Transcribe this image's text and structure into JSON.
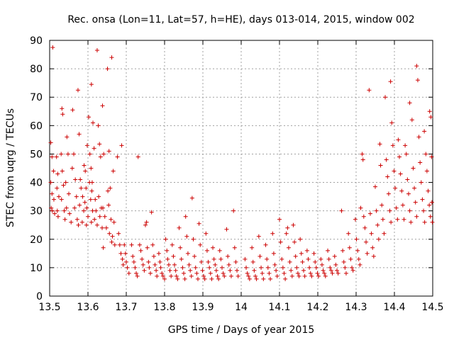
{
  "chart_data": {
    "type": "scatter",
    "title": "Rec. onsa (Lon=11, Lat=57, h=HE), days 013-014, 2015, window 002",
    "xlabel": "GPS time / Days of year 2015",
    "ylabel": "STEC from uqrg / TECUs",
    "xlim": [
      13.5,
      14.5
    ],
    "ylim": [
      0,
      90
    ],
    "xticks": [
      "13.5",
      "13.6",
      "13.7",
      "13.8",
      "13.9",
      "14",
      "14.1",
      "14.2",
      "14.3",
      "14.4",
      "14.5"
    ],
    "yticks": [
      "0",
      "10",
      "20",
      "30",
      "40",
      "50",
      "60",
      "70",
      "80",
      "90"
    ],
    "grid": true,
    "marker": "plus",
    "color": "#cc0000",
    "points": [
      [
        13.508,
        87.5
      ],
      [
        13.503,
        54
      ],
      [
        13.506,
        49
      ],
      [
        13.51,
        44
      ],
      [
        13.503,
        40
      ],
      [
        13.506,
        36
      ],
      [
        13.511,
        34
      ],
      [
        13.504,
        31
      ],
      [
        13.507,
        30
      ],
      [
        13.513,
        29
      ],
      [
        13.518,
        49
      ],
      [
        13.521,
        43
      ],
      [
        13.519,
        38
      ],
      [
        13.524,
        35
      ],
      [
        13.52,
        30
      ],
      [
        13.522,
        28
      ],
      [
        13.532,
        66
      ],
      [
        13.534,
        64
      ],
      [
        13.53,
        50
      ],
      [
        13.533,
        44
      ],
      [
        13.536,
        39
      ],
      [
        13.531,
        34
      ],
      [
        13.538,
        30
      ],
      [
        13.54,
        27
      ],
      [
        13.545,
        56
      ],
      [
        13.548,
        50
      ],
      [
        13.542,
        40
      ],
      [
        13.55,
        36
      ],
      [
        13.544,
        31
      ],
      [
        13.552,
        29
      ],
      [
        13.556,
        26
      ],
      [
        13.56,
        65.5
      ],
      [
        13.563,
        50
      ],
      [
        13.559,
        45
      ],
      [
        13.567,
        41
      ],
      [
        13.57,
        35
      ],
      [
        13.565,
        31
      ],
      [
        13.572,
        27
      ],
      [
        13.575,
        25
      ],
      [
        13.574,
        72.5
      ],
      [
        13.577,
        57
      ],
      [
        13.58,
        41
      ],
      [
        13.582,
        38
      ],
      [
        13.586,
        35
      ],
      [
        13.578,
        32
      ],
      [
        13.589,
        30
      ],
      [
        13.585,
        26
      ],
      [
        13.59,
        46
      ],
      [
        13.593,
        44
      ],
      [
        13.595,
        38
      ],
      [
        13.592,
        33
      ],
      [
        13.597,
        31
      ],
      [
        13.6,
        28
      ],
      [
        13.596,
        25
      ],
      [
        13.602,
        63
      ],
      [
        13.598,
        53
      ],
      [
        13.605,
        50
      ],
      [
        13.608,
        45
      ],
      [
        13.604,
        40
      ],
      [
        13.61,
        37
      ],
      [
        13.607,
        34
      ],
      [
        13.612,
        30
      ],
      [
        13.609,
        26
      ],
      [
        13.609,
        74.5
      ],
      [
        13.613,
        61
      ],
      [
        13.616,
        52
      ],
      [
        13.611,
        40
      ],
      [
        13.619,
        34
      ],
      [
        13.621,
        30
      ],
      [
        13.617,
        27
      ],
      [
        13.624,
        25
      ],
      [
        13.624,
        86.5
      ],
      [
        13.627,
        60
      ],
      [
        13.63,
        53.5
      ],
      [
        13.633,
        49
      ],
      [
        13.628,
        35
      ],
      [
        13.635,
        31
      ],
      [
        13.631,
        28
      ],
      [
        13.637,
        24
      ],
      [
        13.638,
        67
      ],
      [
        13.641,
        50
      ],
      [
        13.639,
        31
      ],
      [
        13.644,
        28
      ],
      [
        13.648,
        24
      ],
      [
        13.64,
        17
      ],
      [
        13.651,
        80
      ],
      [
        13.655,
        51
      ],
      [
        13.652,
        37
      ],
      [
        13.658,
        38
      ],
      [
        13.654,
        32
      ],
      [
        13.66,
        27
      ],
      [
        13.656,
        22
      ],
      [
        13.662,
        19
      ],
      [
        13.662,
        84
      ],
      [
        13.666,
        44
      ],
      [
        13.668,
        26
      ],
      [
        13.664,
        21
      ],
      [
        13.67,
        18
      ],
      [
        13.677,
        49
      ],
      [
        13.68,
        22
      ],
      [
        13.683,
        18
      ],
      [
        13.686,
        15
      ],
      [
        13.69,
        13
      ],
      [
        13.692,
        11
      ],
      [
        13.688,
        53
      ],
      [
        13.695,
        18
      ],
      [
        13.698,
        15
      ],
      [
        13.7,
        12
      ],
      [
        13.703,
        10
      ],
      [
        13.707,
        8
      ],
      [
        13.714,
        18
      ],
      [
        13.717,
        14
      ],
      [
        13.72,
        12
      ],
      [
        13.723,
        10
      ],
      [
        13.726,
        8
      ],
      [
        13.729,
        7
      ],
      [
        13.731,
        49
      ],
      [
        13.735,
        18
      ],
      [
        13.738,
        16
      ],
      [
        13.741,
        13
      ],
      [
        13.744,
        11
      ],
      [
        13.747,
        9
      ],
      [
        13.75,
        25
      ],
      [
        13.753,
        26
      ],
      [
        13.755,
        17
      ],
      [
        13.758,
        12
      ],
      [
        13.76,
        10
      ],
      [
        13.763,
        8
      ],
      [
        13.766,
        29.5
      ],
      [
        13.769,
        18
      ],
      [
        13.772,
        14
      ],
      [
        13.775,
        11
      ],
      [
        13.778,
        9
      ],
      [
        13.78,
        7
      ],
      [
        13.785,
        15
      ],
      [
        13.788,
        12
      ],
      [
        13.79,
        10
      ],
      [
        13.793,
        8
      ],
      [
        13.796,
        7
      ],
      [
        13.8,
        6
      ],
      [
        13.803,
        20
      ],
      [
        13.806,
        16
      ],
      [
        13.808,
        13
      ],
      [
        13.811,
        11
      ],
      [
        13.814,
        9
      ],
      [
        13.817,
        7
      ],
      [
        13.82,
        18
      ],
      [
        13.823,
        14
      ],
      [
        13.826,
        11
      ],
      [
        13.829,
        9
      ],
      [
        13.831,
        7
      ],
      [
        13.834,
        6
      ],
      [
        13.838,
        24
      ],
      [
        13.841,
        17
      ],
      [
        13.844,
        13
      ],
      [
        13.847,
        10
      ],
      [
        13.85,
        8
      ],
      [
        13.853,
        6
      ],
      [
        13.855,
        28
      ],
      [
        13.858,
        21
      ],
      [
        13.861,
        15
      ],
      [
        13.864,
        11
      ],
      [
        13.867,
        9
      ],
      [
        13.87,
        7
      ],
      [
        13.872,
        34.5
      ],
      [
        13.875,
        20
      ],
      [
        13.878,
        14
      ],
      [
        13.881,
        10
      ],
      [
        13.884,
        8
      ],
      [
        13.887,
        6
      ],
      [
        13.89,
        25.5
      ],
      [
        13.893,
        18
      ],
      [
        13.896,
        12
      ],
      [
        13.899,
        9
      ],
      [
        13.902,
        7
      ],
      [
        13.905,
        6
      ],
      [
        13.908,
        22
      ],
      [
        13.911,
        16
      ],
      [
        13.914,
        12
      ],
      [
        13.917,
        10
      ],
      [
        13.92,
        8
      ],
      [
        13.923,
        6
      ],
      [
        13.926,
        17
      ],
      [
        13.929,
        13
      ],
      [
        13.932,
        11
      ],
      [
        13.935,
        9
      ],
      [
        13.938,
        7
      ],
      [
        13.941,
        6
      ],
      [
        13.944,
        16
      ],
      [
        13.947,
        13
      ],
      [
        13.95,
        10
      ],
      [
        13.953,
        8
      ],
      [
        13.956,
        7
      ],
      [
        13.962,
        23.5
      ],
      [
        13.965,
        14
      ],
      [
        13.968,
        11
      ],
      [
        13.971,
        9
      ],
      [
        13.974,
        7
      ],
      [
        13.98,
        30
      ],
      [
        13.983,
        17
      ],
      [
        13.986,
        12
      ],
      [
        13.989,
        9
      ],
      [
        13.992,
        7
      ],
      [
        14.01,
        13
      ],
      [
        14.013,
        10
      ],
      [
        14.016,
        8
      ],
      [
        14.019,
        7
      ],
      [
        14.022,
        6
      ],
      [
        14.028,
        17
      ],
      [
        14.031,
        12
      ],
      [
        14.034,
        9
      ],
      [
        14.037,
        7
      ],
      [
        14.04,
        6
      ],
      [
        14.046,
        21
      ],
      [
        14.049,
        14
      ],
      [
        14.052,
        10
      ],
      [
        14.055,
        8
      ],
      [
        14.058,
        6
      ],
      [
        14.064,
        18
      ],
      [
        14.067,
        13
      ],
      [
        14.07,
        10
      ],
      [
        14.073,
        8
      ],
      [
        14.076,
        6
      ],
      [
        14.082,
        22
      ],
      [
        14.085,
        15
      ],
      [
        14.088,
        11
      ],
      [
        14.091,
        9
      ],
      [
        14.094,
        7
      ],
      [
        14.1,
        27
      ],
      [
        14.103,
        19
      ],
      [
        14.106,
        13
      ],
      [
        14.109,
        10
      ],
      [
        14.112,
        8
      ],
      [
        14.115,
        6
      ],
      [
        14.118,
        22
      ],
      [
        14.121,
        24
      ],
      [
        14.124,
        17
      ],
      [
        14.127,
        12
      ],
      [
        14.13,
        9
      ],
      [
        14.133,
        7
      ],
      [
        14.136,
        25
      ],
      [
        14.139,
        19
      ],
      [
        14.142,
        14
      ],
      [
        14.145,
        10
      ],
      [
        14.148,
        8
      ],
      [
        14.151,
        7
      ],
      [
        14.154,
        20
      ],
      [
        14.157,
        15
      ],
      [
        14.16,
        12
      ],
      [
        14.163,
        9
      ],
      [
        14.166,
        7
      ],
      [
        14.172,
        16
      ],
      [
        14.175,
        13
      ],
      [
        14.178,
        10
      ],
      [
        14.181,
        8
      ],
      [
        14.184,
        7
      ],
      [
        14.19,
        15
      ],
      [
        14.193,
        12
      ],
      [
        14.196,
        10
      ],
      [
        14.199,
        8
      ],
      [
        14.202,
        7
      ],
      [
        14.208,
        13
      ],
      [
        14.211,
        11
      ],
      [
        14.214,
        9
      ],
      [
        14.217,
        8
      ],
      [
        14.22,
        7
      ],
      [
        14.226,
        16
      ],
      [
        14.229,
        13
      ],
      [
        14.232,
        10
      ],
      [
        14.235,
        9
      ],
      [
        14.238,
        8
      ],
      [
        14.244,
        14
      ],
      [
        14.247,
        11
      ],
      [
        14.25,
        9
      ],
      [
        14.253,
        8
      ],
      [
        14.262,
        30
      ],
      [
        14.265,
        16
      ],
      [
        14.268,
        12
      ],
      [
        14.271,
        10
      ],
      [
        14.274,
        8
      ],
      [
        14.28,
        22
      ],
      [
        14.283,
        17
      ],
      [
        14.286,
        13
      ],
      [
        14.289,
        10
      ],
      [
        14.292,
        9
      ],
      [
        14.298,
        27
      ],
      [
        14.301,
        20
      ],
      [
        14.304,
        16
      ],
      [
        14.307,
        13
      ],
      [
        14.31,
        11
      ],
      [
        14.312,
        31
      ],
      [
        14.316,
        50
      ],
      [
        14.318,
        48
      ],
      [
        14.32,
        28
      ],
      [
        14.323,
        24
      ],
      [
        14.326,
        19
      ],
      [
        14.329,
        15
      ],
      [
        14.334,
        72.5
      ],
      [
        14.337,
        29
      ],
      [
        14.34,
        22
      ],
      [
        14.343,
        17
      ],
      [
        14.346,
        14
      ],
      [
        14.35,
        38.5
      ],
      [
        14.353,
        30
      ],
      [
        14.356,
        25
      ],
      [
        14.359,
        20
      ],
      [
        14.362,
        53.5
      ],
      [
        14.364,
        46
      ],
      [
        14.367,
        32
      ],
      [
        14.37,
        27
      ],
      [
        14.373,
        22
      ],
      [
        14.376,
        70
      ],
      [
        14.379,
        48
      ],
      [
        14.382,
        42
      ],
      [
        14.385,
        36
      ],
      [
        14.388,
        30
      ],
      [
        14.391,
        26
      ],
      [
        14.39,
        75.5
      ],
      [
        14.393,
        61
      ],
      [
        14.396,
        53
      ],
      [
        14.399,
        44
      ],
      [
        14.402,
        38
      ],
      [
        14.405,
        31
      ],
      [
        14.408,
        27
      ],
      [
        14.41,
        55
      ],
      [
        14.413,
        49
      ],
      [
        14.416,
        43
      ],
      [
        14.419,
        37
      ],
      [
        14.422,
        32
      ],
      [
        14.425,
        27
      ],
      [
        14.428,
        53
      ],
      [
        14.431,
        50
      ],
      [
        14.434,
        41
      ],
      [
        14.437,
        36
      ],
      [
        14.44,
        30
      ],
      [
        14.443,
        26
      ],
      [
        14.44,
        68
      ],
      [
        14.446,
        62
      ],
      [
        14.449,
        45
      ],
      [
        14.452,
        38
      ],
      [
        14.455,
        33
      ],
      [
        14.458,
        28
      ],
      [
        14.458,
        81
      ],
      [
        14.461,
        76
      ],
      [
        14.464,
        56
      ],
      [
        14.467,
        47
      ],
      [
        14.47,
        40
      ],
      [
        14.473,
        34
      ],
      [
        14.476,
        30
      ],
      [
        14.479,
        26
      ],
      [
        14.478,
        58
      ],
      [
        14.482,
        50
      ],
      [
        14.485,
        44
      ],
      [
        14.488,
        37
      ],
      [
        14.491,
        32
      ],
      [
        14.494,
        28
      ],
      [
        14.492,
        65
      ],
      [
        14.495,
        63
      ],
      [
        14.497,
        49
      ],
      [
        14.498,
        33
      ],
      [
        14.499,
        26
      ]
    ]
  }
}
